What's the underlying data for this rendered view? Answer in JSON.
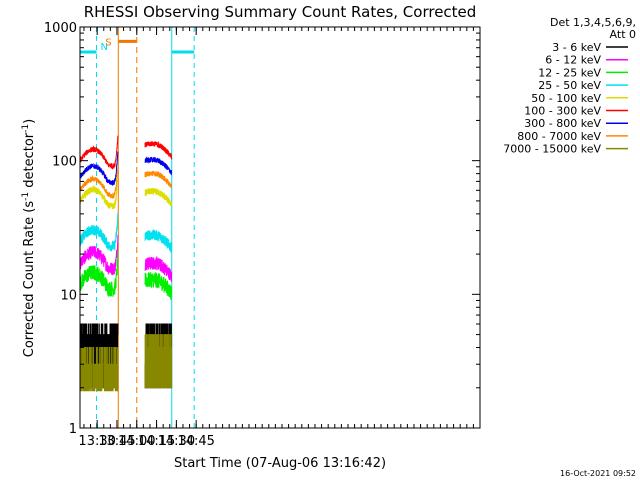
{
  "chart_data": {
    "type": "line",
    "title": "RHESSI Observing Summary Count Rates, Corrected",
    "ylabel_main": "Corrected Count Rate (s",
    "ylabel_exp1": "-1",
    "ylabel_mid": " detector",
    "ylabel_exp2": "-1",
    "ylabel_end": ")",
    "xlabel": "Start Time (07-Aug-06 13:16:42)",
    "timestamp": "16-Oct-2021 09:52",
    "yscale": "log",
    "ylim": [
      1,
      1000
    ],
    "xlim_min": [
      797,
      1100
    ],
    "x_ticks": [
      {
        "value": 810,
        "label": "13:30"
      },
      {
        "value": 825,
        "label": "13:45"
      },
      {
        "value": 840,
        "label": "14:00"
      },
      {
        "value": 855,
        "label": "14:15"
      },
      {
        "value": 870,
        "label": "14:30"
      },
      {
        "value": 885,
        "label": "14:45"
      }
    ],
    "y_ticks": [
      {
        "value": 1,
        "label": "1"
      },
      {
        "value": 10,
        "label": "10"
      },
      {
        "value": 100,
        "label": "100"
      },
      {
        "value": 1000,
        "label": "1000"
      }
    ],
    "legend_header": [
      "Det 1,3,4,5,6,9,",
      "Att 0"
    ],
    "legend_position": "right",
    "gap": [
      826,
      846
    ],
    "series": [
      {
        "name": "3 - 6 keV",
        "color": "#000000",
        "base": [
          4,
          4
        ],
        "noise": 0.18,
        "step": true
      },
      {
        "name": "6 - 12 keV",
        "color": "#ff00ff",
        "base": [
          17,
          16
        ],
        "noise": 0.05,
        "step": false
      },
      {
        "name": "12 - 25 keV",
        "color": "#00ee00",
        "base": [
          12,
          12
        ],
        "noise": 0.06,
        "step": false
      },
      {
        "name": "25 - 50 keV",
        "color": "#00e0ee",
        "base": [
          25,
          26
        ],
        "noise": 0.04,
        "step": false
      },
      {
        "name": "50 - 100 keV",
        "color": "#dddd00",
        "base": [
          50,
          55
        ],
        "noise": 0.025,
        "step": false
      },
      {
        "name": "100 - 300 keV",
        "color": "#ff0000",
        "base": [
          100,
          125
        ],
        "noise": 0.02,
        "step": false
      },
      {
        "name": "300 - 800 keV",
        "color": "#0000ee",
        "base": [
          75,
          95
        ],
        "noise": 0.02,
        "step": false
      },
      {
        "name": "800 - 7000 keV",
        "color": "#ff8800",
        "base": [
          60,
          75
        ],
        "noise": 0.02,
        "step": false
      },
      {
        "name": "7000 - 15000 keV",
        "color": "#888800",
        "base": [
          2.5,
          3
        ],
        "noise": 0.2,
        "step": true
      }
    ],
    "annotations": {
      "night": [
        {
          "label": "N",
          "start": 797,
          "end": 809.5,
          "color": "#00ddee"
        },
        {
          "label": "",
          "start": 866.5,
          "end": 883.5,
          "color": "#00ddee"
        }
      ],
      "saa": [
        {
          "label": "S",
          "start": 826,
          "end": 840,
          "color": "#ee7700"
        }
      ],
      "night_level": 650,
      "saa_level": 780
    }
  }
}
